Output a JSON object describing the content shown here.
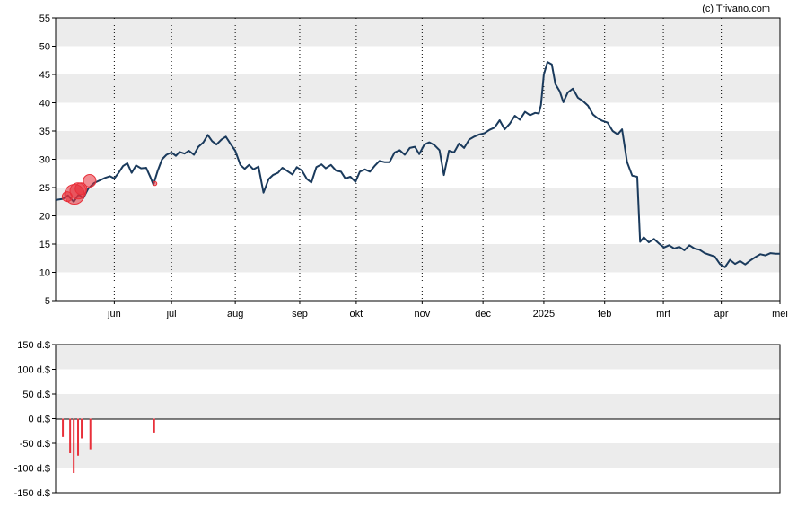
{
  "copyright": "(c) Trivano.com",
  "chart_data": [
    {
      "type": "line",
      "ylim": [
        5,
        55
      ],
      "yticks": [
        5,
        10,
        15,
        20,
        25,
        30,
        35,
        40,
        45,
        50,
        55
      ],
      "grid": "alternating-horizontal-bands, dotted-vertical-month-lines",
      "x_ticks": [
        {
          "label": "jun",
          "t": 8.1
        },
        {
          "label": "jul",
          "t": 16.0
        },
        {
          "label": "aug",
          "t": 24.8
        },
        {
          "label": "sep",
          "t": 33.7
        },
        {
          "label": "okt",
          "t": 41.5
        },
        {
          "label": "nov",
          "t": 50.6
        },
        {
          "label": "dec",
          "t": 59.0
        },
        {
          "label": "2025",
          "t": 67.4
        },
        {
          "label": "feb",
          "t": 75.8
        },
        {
          "label": "mrt",
          "t": 83.9
        },
        {
          "label": "apr",
          "t": 91.9
        },
        {
          "label": "mei",
          "t": 100.0
        }
      ],
      "line_color": "#1a3a5c",
      "marker_color": "#e8303a",
      "series": [
        {
          "values": [
            [
              0.0,
              22.8
            ],
            [
              1.0,
              23.0
            ],
            [
              1.7,
              23.6
            ],
            [
              2.5,
              22.5
            ],
            [
              3.2,
              23.8
            ],
            [
              3.8,
              23.1
            ],
            [
              4.5,
              24.8
            ],
            [
              5.3,
              25.8
            ],
            [
              6.0,
              26.2
            ],
            [
              6.8,
              26.7
            ],
            [
              7.5,
              27.0
            ],
            [
              8.1,
              26.6
            ],
            [
              8.7,
              27.6
            ],
            [
              9.3,
              28.8
            ],
            [
              9.9,
              29.3
            ],
            [
              10.5,
              27.6
            ],
            [
              11.1,
              28.9
            ],
            [
              11.8,
              28.4
            ],
            [
              12.5,
              28.5
            ],
            [
              13.1,
              26.8
            ],
            [
              13.5,
              25.5
            ],
            [
              14.1,
              28.0
            ],
            [
              14.7,
              30.0
            ],
            [
              15.3,
              30.8
            ],
            [
              16.0,
              31.2
            ],
            [
              16.6,
              30.6
            ],
            [
              17.1,
              31.3
            ],
            [
              17.8,
              31.0
            ],
            [
              18.4,
              31.5
            ],
            [
              19.1,
              30.8
            ],
            [
              19.7,
              32.2
            ],
            [
              20.4,
              33.0
            ],
            [
              21.0,
              34.3
            ],
            [
              21.6,
              33.2
            ],
            [
              22.2,
              32.6
            ],
            [
              22.9,
              33.5
            ],
            [
              23.5,
              34.0
            ],
            [
              24.1,
              32.8
            ],
            [
              24.8,
              31.5
            ],
            [
              25.5,
              29.0
            ],
            [
              26.1,
              28.3
            ],
            [
              26.7,
              29.0
            ],
            [
              27.3,
              28.2
            ],
            [
              28.0,
              28.7
            ],
            [
              28.7,
              24.1
            ],
            [
              29.4,
              26.5
            ],
            [
              30.0,
              27.2
            ],
            [
              30.7,
              27.6
            ],
            [
              31.3,
              28.5
            ],
            [
              32.0,
              27.9
            ],
            [
              32.7,
              27.3
            ],
            [
              33.3,
              28.6
            ],
            [
              34.0,
              28.0
            ],
            [
              34.7,
              26.5
            ],
            [
              35.3,
              25.9
            ],
            [
              36.0,
              28.6
            ],
            [
              36.7,
              29.1
            ],
            [
              37.3,
              28.4
            ],
            [
              38.0,
              29.0
            ],
            [
              38.7,
              28.0
            ],
            [
              39.4,
              27.8
            ],
            [
              40.0,
              26.6
            ],
            [
              40.7,
              26.9
            ],
            [
              41.4,
              26.0
            ],
            [
              42.0,
              27.8
            ],
            [
              42.7,
              28.2
            ],
            [
              43.4,
              27.8
            ],
            [
              44.1,
              28.9
            ],
            [
              44.7,
              29.7
            ],
            [
              45.4,
              29.5
            ],
            [
              46.1,
              29.5
            ],
            [
              46.8,
              31.2
            ],
            [
              47.5,
              31.6
            ],
            [
              48.2,
              30.8
            ],
            [
              48.9,
              32.0
            ],
            [
              49.6,
              32.2
            ],
            [
              50.2,
              30.9
            ],
            [
              50.9,
              32.6
            ],
            [
              51.6,
              33.0
            ],
            [
              52.3,
              32.5
            ],
            [
              53.0,
              31.6
            ],
            [
              53.6,
              27.2
            ],
            [
              54.3,
              31.5
            ],
            [
              55.0,
              31.2
            ],
            [
              55.7,
              32.8
            ],
            [
              56.4,
              32.0
            ],
            [
              57.1,
              33.5
            ],
            [
              57.8,
              34.0
            ],
            [
              58.5,
              34.4
            ],
            [
              59.2,
              34.6
            ],
            [
              59.9,
              35.2
            ],
            [
              60.6,
              35.6
            ],
            [
              61.3,
              36.9
            ],
            [
              62.0,
              35.3
            ],
            [
              62.7,
              36.3
            ],
            [
              63.4,
              37.7
            ],
            [
              64.1,
              37.0
            ],
            [
              64.8,
              38.4
            ],
            [
              65.5,
              37.8
            ],
            [
              66.2,
              38.2
            ],
            [
              66.7,
              38.1
            ],
            [
              67.0,
              39.6
            ],
            [
              67.4,
              45.0
            ],
            [
              67.9,
              47.2
            ],
            [
              68.5,
              46.8
            ],
            [
              69.0,
              43.3
            ],
            [
              69.6,
              42.0
            ],
            [
              70.1,
              40.1
            ],
            [
              70.7,
              41.8
            ],
            [
              71.4,
              42.5
            ],
            [
              72.1,
              40.9
            ],
            [
              72.8,
              40.3
            ],
            [
              73.5,
              39.5
            ],
            [
              74.2,
              37.9
            ],
            [
              74.9,
              37.2
            ],
            [
              75.5,
              36.8
            ],
            [
              76.2,
              36.5
            ],
            [
              76.9,
              35.0
            ],
            [
              77.6,
              34.4
            ],
            [
              78.2,
              35.3
            ],
            [
              78.9,
              29.5
            ],
            [
              79.6,
              27.1
            ],
            [
              80.3,
              26.9
            ],
            [
              80.7,
              15.4
            ],
            [
              81.2,
              16.2
            ],
            [
              81.9,
              15.3
            ],
            [
              82.6,
              15.9
            ],
            [
              83.3,
              15.1
            ],
            [
              84.0,
              14.4
            ],
            [
              84.7,
              14.8
            ],
            [
              85.4,
              14.2
            ],
            [
              86.1,
              14.5
            ],
            [
              86.8,
              13.9
            ],
            [
              87.5,
              14.8
            ],
            [
              88.2,
              14.2
            ],
            [
              88.9,
              14.0
            ],
            [
              89.6,
              13.4
            ],
            [
              90.3,
              13.1
            ],
            [
              91.0,
              12.8
            ],
            [
              91.7,
              11.5
            ],
            [
              92.4,
              10.9
            ],
            [
              93.1,
              12.2
            ],
            [
              93.8,
              11.5
            ],
            [
              94.5,
              12.0
            ],
            [
              95.2,
              11.4
            ],
            [
              95.9,
              12.1
            ],
            [
              96.6,
              12.7
            ],
            [
              97.3,
              13.2
            ],
            [
              98.0,
              13.0
            ],
            [
              98.7,
              13.4
            ],
            [
              99.4,
              13.3
            ],
            [
              100.0,
              13.3
            ]
          ]
        }
      ],
      "markers": [
        {
          "t": 1.6,
          "value": 23.4,
          "r": 5.5
        },
        {
          "t": 2.6,
          "value": 23.8,
          "r": 11.0
        },
        {
          "t": 3.1,
          "value": 24.4,
          "r": 9.0
        },
        {
          "t": 3.5,
          "value": 24.8,
          "r": 6.5
        },
        {
          "t": 4.7,
          "value": 26.2,
          "r": 7.0
        },
        {
          "t": 13.7,
          "value": 25.7,
          "r": 2.2
        }
      ]
    },
    {
      "type": "bar",
      "ylim": [
        -150,
        150
      ],
      "yticks": [
        {
          "value": 150,
          "label": "150 d.$"
        },
        {
          "value": 100,
          "label": "100 d.$"
        },
        {
          "value": 50,
          "label": "50 d.$"
        },
        {
          "value": 0,
          "label": "0 d.$"
        },
        {
          "value": -50,
          "label": "-50 d.$"
        },
        {
          "value": -100,
          "label": "-100 d.$"
        },
        {
          "value": -150,
          "label": "-150 d.$"
        }
      ],
      "bar_color": "#e8303a",
      "series": [
        {
          "values": [
            [
              1.0,
              -37
            ],
            [
              2.0,
              -70
            ],
            [
              2.5,
              -110
            ],
            [
              3.1,
              -75
            ],
            [
              3.6,
              -40
            ],
            [
              4.8,
              -62
            ],
            [
              13.6,
              -28
            ]
          ]
        }
      ]
    }
  ]
}
